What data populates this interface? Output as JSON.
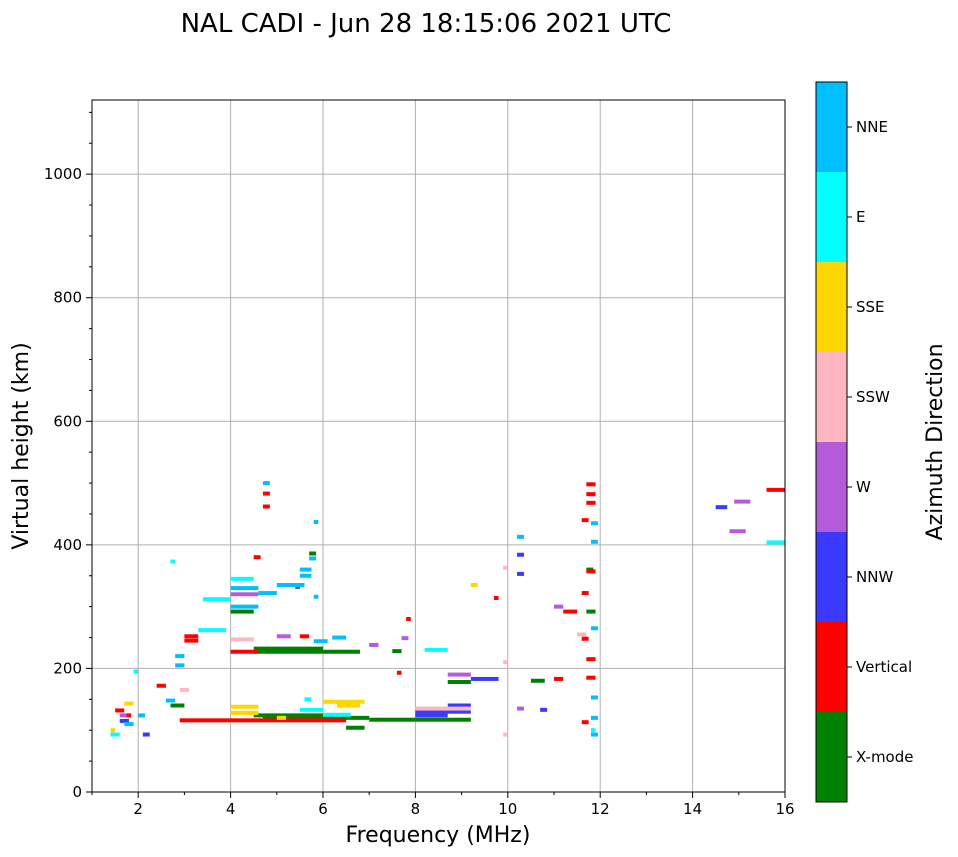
{
  "chart_data": {
    "type": "scatter",
    "title": "NAL CADI - Jun 28 18:15:06 2021 UTC",
    "xlabel": "Frequency (MHz)",
    "ylabel": "Virtual height (km)",
    "xlim": [
      1,
      16
    ],
    "ylim": [
      0,
      1120
    ],
    "xticks": [
      2,
      4,
      6,
      8,
      10,
      12,
      14,
      16
    ],
    "yticks": [
      0,
      200,
      400,
      600,
      800,
      1000
    ],
    "grid": true,
    "colorbar": {
      "label": "Azimuth Direction",
      "categories": [
        {
          "name": "X-mode",
          "color": "#008000"
        },
        {
          "name": "Vertical",
          "color": "#ff0000"
        },
        {
          "name": "NNW",
          "color": "#3a3aff"
        },
        {
          "name": "W",
          "color": "#b55bd9"
        },
        {
          "name": "SSW",
          "color": "#ffb6c1"
        },
        {
          "name": "SSE",
          "color": "#ffd700"
        },
        {
          "name": "E",
          "color": "#00ffff"
        },
        {
          "name": "NNE",
          "color": "#00bfff"
        }
      ]
    },
    "series": [
      {
        "name": "X-mode",
        "segments": [
          [
            4.5,
            6.8,
            227
          ],
          [
            4.5,
            6.0,
            232
          ],
          [
            4.7,
            7.0,
            120
          ],
          [
            4.5,
            6.0,
            124
          ],
          [
            7.0,
            8.0,
            117
          ],
          [
            8.0,
            9.2,
            117
          ],
          [
            8.7,
            9.2,
            178
          ],
          [
            6.5,
            6.9,
            104
          ],
          [
            4.0,
            4.5,
            292
          ],
          [
            5.7,
            5.85,
            386
          ],
          [
            10.5,
            10.8,
            180
          ],
          [
            11.7,
            11.9,
            292
          ],
          [
            11.7,
            11.85,
            360
          ],
          [
            2.7,
            3.0,
            140
          ],
          [
            7.5,
            7.7,
            228
          ]
        ]
      },
      {
        "name": "Vertical",
        "segments": [
          [
            3.5,
            6.5,
            116
          ],
          [
            2.9,
            3.5,
            116
          ],
          [
            4.0,
            4.6,
            227
          ],
          [
            3.0,
            3.3,
            245
          ],
          [
            3.0,
            3.3,
            252
          ],
          [
            2.4,
            2.6,
            172
          ],
          [
            1.5,
            1.7,
            132
          ],
          [
            4.7,
            4.85,
            483
          ],
          [
            4.7,
            4.85,
            462
          ],
          [
            4.5,
            4.65,
            380
          ],
          [
            11.7,
            11.9,
            498
          ],
          [
            11.7,
            11.9,
            482
          ],
          [
            11.7,
            11.9,
            468
          ],
          [
            11.7,
            11.9,
            357
          ],
          [
            11.7,
            11.9,
            215
          ],
          [
            11.2,
            11.5,
            292
          ],
          [
            11.7,
            11.9,
            185
          ],
          [
            15.6,
            16.0,
            489
          ],
          [
            9.7,
            9.8,
            314
          ],
          [
            7.8,
            7.9,
            280
          ],
          [
            11.0,
            11.2,
            183
          ],
          [
            5.5,
            5.7,
            252
          ],
          [
            7.6,
            7.7,
            193
          ],
          [
            1.7,
            1.85,
            124
          ],
          [
            11.6,
            11.75,
            440
          ],
          [
            11.6,
            11.75,
            322
          ],
          [
            11.6,
            11.75,
            248
          ],
          [
            11.6,
            11.75,
            113
          ]
        ]
      },
      {
        "name": "NNW",
        "segments": [
          [
            8.0,
            9.2,
            130
          ],
          [
            8.7,
            9.2,
            140
          ],
          [
            9.2,
            9.8,
            183
          ],
          [
            10.2,
            10.35,
            353
          ],
          [
            10.2,
            10.35,
            384
          ],
          [
            14.5,
            14.75,
            461
          ],
          [
            10.7,
            10.85,
            133
          ],
          [
            2.1,
            2.25,
            93
          ],
          [
            5.4,
            5.5,
            332
          ],
          [
            1.6,
            1.8,
            115
          ],
          [
            8.0,
            8.7,
            124
          ]
        ]
      },
      {
        "name": "W",
        "segments": [
          [
            8.7,
            9.2,
            190
          ],
          [
            4.0,
            4.6,
            320
          ],
          [
            7.7,
            7.85,
            249
          ],
          [
            14.9,
            15.25,
            470
          ],
          [
            14.8,
            15.15,
            422
          ],
          [
            11.0,
            11.2,
            300
          ],
          [
            10.2,
            10.35,
            135
          ],
          [
            7.0,
            7.2,
            238
          ],
          [
            5.0,
            5.3,
            252
          ],
          [
            1.6,
            1.75,
            124
          ]
        ]
      },
      {
        "name": "SSW",
        "segments": [
          [
            4.0,
            4.5,
            247
          ],
          [
            2.9,
            3.1,
            165
          ],
          [
            9.9,
            10.0,
            210
          ],
          [
            9.9,
            10.0,
            93
          ],
          [
            9.9,
            10.0,
            363
          ],
          [
            11.5,
            11.7,
            255
          ],
          [
            8.0,
            9.2,
            135
          ]
        ]
      },
      {
        "name": "SSE",
        "segments": [
          [
            4.0,
            4.6,
            138
          ],
          [
            6.0,
            6.9,
            146
          ],
          [
            4.0,
            4.6,
            128
          ],
          [
            9.2,
            9.35,
            335
          ],
          [
            1.7,
            1.9,
            143
          ],
          [
            1.4,
            1.5,
            100
          ],
          [
            5.0,
            5.2,
            120
          ],
          [
            6.3,
            6.8,
            140
          ]
        ]
      },
      {
        "name": "E",
        "segments": [
          [
            3.4,
            4.0,
            312
          ],
          [
            4.0,
            4.5,
            345
          ],
          [
            3.3,
            3.9,
            262
          ],
          [
            8.2,
            8.7,
            230
          ],
          [
            15.6,
            16.0,
            404
          ],
          [
            5.5,
            6.0,
            133
          ],
          [
            6.0,
            6.6,
            125
          ],
          [
            1.9,
            2.0,
            195
          ],
          [
            5.6,
            5.75,
            150
          ],
          [
            2.7,
            2.8,
            373
          ],
          [
            1.4,
            1.6,
            93
          ],
          [
            11.8,
            11.9,
            100
          ]
        ]
      },
      {
        "name": "NNE",
        "segments": [
          [
            4.0,
            4.6,
            300
          ],
          [
            4.0,
            4.6,
            330
          ],
          [
            4.6,
            5.0,
            322
          ],
          [
            5.0,
            5.6,
            335
          ],
          [
            5.5,
            5.75,
            350
          ],
          [
            5.5,
            5.75,
            360
          ],
          [
            5.7,
            5.85,
            378
          ],
          [
            2.8,
            3.0,
            220
          ],
          [
            2.8,
            3.0,
            205
          ],
          [
            6.2,
            6.5,
            250
          ],
          [
            5.8,
            6.1,
            244
          ],
          [
            11.8,
            11.95,
            405
          ],
          [
            11.8,
            11.95,
            435
          ],
          [
            11.8,
            11.95,
            265
          ],
          [
            11.8,
            11.95,
            153
          ],
          [
            11.8,
            11.95,
            93
          ],
          [
            11.8,
            11.95,
            120
          ],
          [
            4.7,
            4.85,
            500
          ],
          [
            10.2,
            10.35,
            413
          ],
          [
            5.8,
            5.9,
            437
          ],
          [
            5.8,
            5.9,
            316
          ],
          [
            1.7,
            1.9,
            110
          ],
          [
            2.0,
            2.15,
            124
          ],
          [
            2.6,
            2.8,
            148
          ]
        ]
      }
    ]
  }
}
